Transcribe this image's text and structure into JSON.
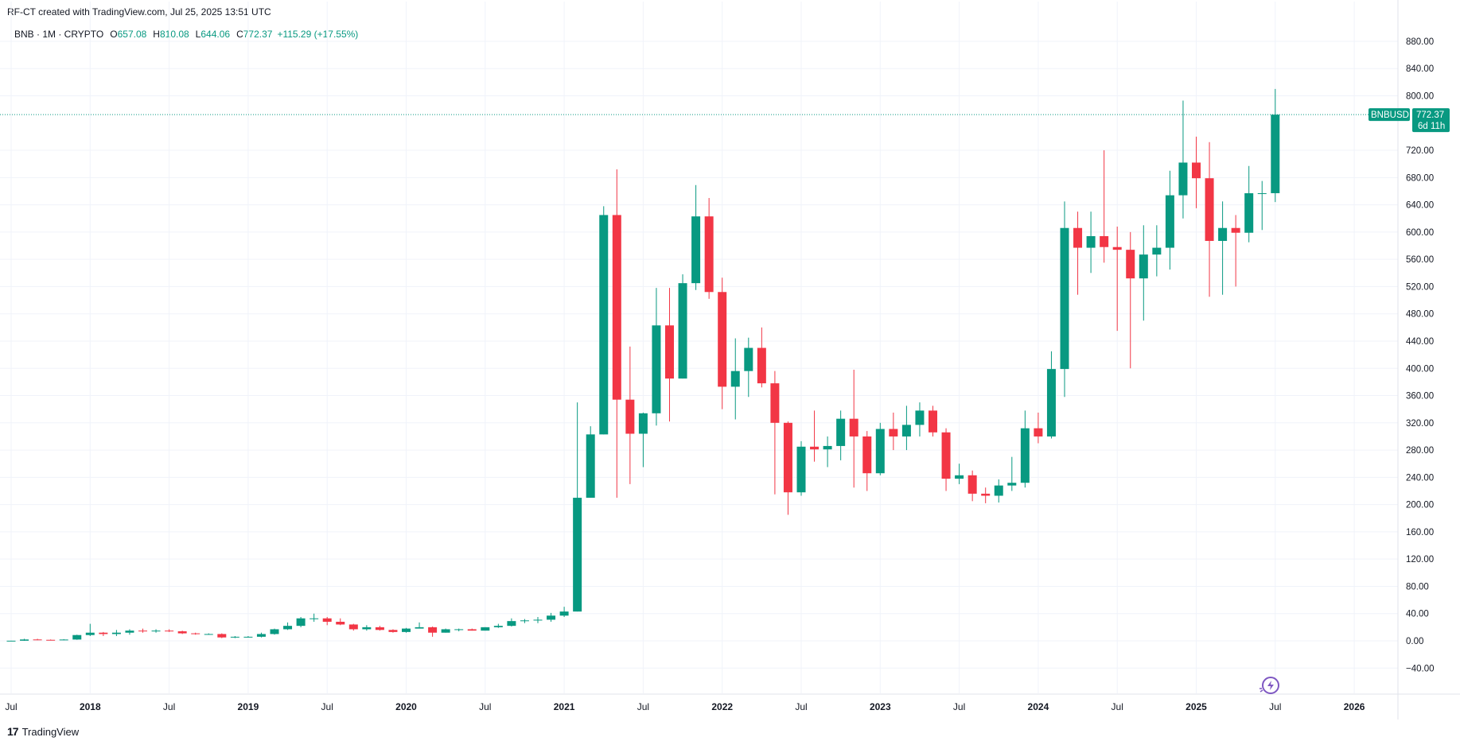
{
  "header": {
    "attribution": "RF-CT created with TradingView.com, Jul 25, 2025 13:51 UTC"
  },
  "legend": {
    "symbol": "BNB · 1M · CRYPTO",
    "open_key": "O",
    "open": "657.08",
    "high_key": "H",
    "high": "810.08",
    "low_key": "L",
    "low": "644.06",
    "close_key": "C",
    "close": "772.37",
    "change": "+115.29 (+17.55%)"
  },
  "price_tag": {
    "symbol": "BNBUSD",
    "price": "772.37",
    "countdown": "6d 11h"
  },
  "footer": {
    "brand": "TradingView",
    "logo_mark": "17"
  },
  "colors": {
    "up": "#089981",
    "down": "#f23645",
    "grid": "#f0f3fa",
    "text": "#131722"
  },
  "chart_data": {
    "type": "candlestick",
    "interval": "1M",
    "ylim": [
      -60,
      900
    ],
    "yticks": [
      -40,
      0,
      40,
      80,
      120,
      160,
      200,
      240,
      280,
      320,
      360,
      400,
      440,
      480,
      520,
      560,
      600,
      640,
      680,
      720,
      800,
      840,
      880
    ],
    "ytick_labels": [
      "−40.00",
      "0.00",
      "40.00",
      "80.00",
      "120.00",
      "160.00",
      "200.00",
      "240.00",
      "280.00",
      "320.00",
      "360.00",
      "400.00",
      "440.00",
      "480.00",
      "520.00",
      "560.00",
      "600.00",
      "640.00",
      "680.00",
      "720.00",
      "800.00",
      "840.00",
      "880.00"
    ],
    "xticks": [
      {
        "label": "Jul",
        "date": "2017-07"
      },
      {
        "label": "2018",
        "date": "2018-01"
      },
      {
        "label": "Jul",
        "date": "2018-07"
      },
      {
        "label": "2019",
        "date": "2019-01"
      },
      {
        "label": "Jul",
        "date": "2019-07"
      },
      {
        "label": "2020",
        "date": "2020-01"
      },
      {
        "label": "Jul",
        "date": "2020-07"
      },
      {
        "label": "2021",
        "date": "2021-01"
      },
      {
        "label": "Jul",
        "date": "2021-07"
      },
      {
        "label": "2022",
        "date": "2022-01"
      },
      {
        "label": "Jul",
        "date": "2022-07"
      },
      {
        "label": "2023",
        "date": "2023-01"
      },
      {
        "label": "Jul",
        "date": "2023-07"
      },
      {
        "label": "2024",
        "date": "2024-01"
      },
      {
        "label": "Jul",
        "date": "2024-07"
      },
      {
        "label": "2025",
        "date": "2025-01"
      },
      {
        "label": "Jul",
        "date": "2025-07"
      },
      {
        "label": "2026",
        "date": "2026-01"
      }
    ],
    "last_price": 772.37,
    "candles": [
      {
        "date": "2017-07",
        "o": 0.1,
        "h": 0.3,
        "l": 0.1,
        "c": 0.2
      },
      {
        "date": "2017-08",
        "o": 0.2,
        "h": 3,
        "l": 0.1,
        "c": 2
      },
      {
        "date": "2017-09",
        "o": 2,
        "h": 3,
        "l": 1,
        "c": 1.5
      },
      {
        "date": "2017-10",
        "o": 1.5,
        "h": 2,
        "l": 1,
        "c": 1.2
      },
      {
        "date": "2017-11",
        "o": 1.2,
        "h": 2.5,
        "l": 1,
        "c": 1.9
      },
      {
        "date": "2017-12",
        "o": 1.9,
        "h": 9,
        "l": 1.5,
        "c": 8.5
      },
      {
        "date": "2018-01",
        "o": 8.5,
        "h": 25,
        "l": 7,
        "c": 12
      },
      {
        "date": "2018-02",
        "o": 12,
        "h": 13,
        "l": 7,
        "c": 10
      },
      {
        "date": "2018-03",
        "o": 10,
        "h": 16,
        "l": 7,
        "c": 12
      },
      {
        "date": "2018-04",
        "o": 12,
        "h": 17,
        "l": 9,
        "c": 15
      },
      {
        "date": "2018-05",
        "o": 15,
        "h": 18,
        "l": 12,
        "c": 14
      },
      {
        "date": "2018-06",
        "o": 14,
        "h": 17,
        "l": 12,
        "c": 15
      },
      {
        "date": "2018-07",
        "o": 15,
        "h": 17,
        "l": 13,
        "c": 14
      },
      {
        "date": "2018-08",
        "o": 14,
        "h": 15,
        "l": 10,
        "c": 11
      },
      {
        "date": "2018-09",
        "o": 11,
        "h": 12,
        "l": 9,
        "c": 10
      },
      {
        "date": "2018-10",
        "o": 10,
        "h": 11,
        "l": 9,
        "c": 10
      },
      {
        "date": "2018-11",
        "o": 10,
        "h": 11,
        "l": 4,
        "c": 5
      },
      {
        "date": "2018-12",
        "o": 5,
        "h": 7,
        "l": 4,
        "c": 6
      },
      {
        "date": "2019-01",
        "o": 6,
        "h": 7,
        "l": 5,
        "c": 6
      },
      {
        "date": "2019-02",
        "o": 6,
        "h": 12,
        "l": 5,
        "c": 10
      },
      {
        "date": "2019-03",
        "o": 10,
        "h": 18,
        "l": 9,
        "c": 17
      },
      {
        "date": "2019-04",
        "o": 17,
        "h": 27,
        "l": 16,
        "c": 22
      },
      {
        "date": "2019-05",
        "o": 22,
        "h": 35,
        "l": 20,
        "c": 33
      },
      {
        "date": "2019-06",
        "o": 33,
        "h": 40,
        "l": 28,
        "c": 33
      },
      {
        "date": "2019-07",
        "o": 33,
        "h": 35,
        "l": 23,
        "c": 28
      },
      {
        "date": "2019-08",
        "o": 28,
        "h": 33,
        "l": 23,
        "c": 24
      },
      {
        "date": "2019-09",
        "o": 24,
        "h": 25,
        "l": 15,
        "c": 17
      },
      {
        "date": "2019-10",
        "o": 17,
        "h": 23,
        "l": 15,
        "c": 20
      },
      {
        "date": "2019-11",
        "o": 20,
        "h": 22,
        "l": 15,
        "c": 16
      },
      {
        "date": "2019-12",
        "o": 16,
        "h": 17,
        "l": 12,
        "c": 13
      },
      {
        "date": "2020-01",
        "o": 13,
        "h": 19,
        "l": 12,
        "c": 18
      },
      {
        "date": "2020-02",
        "o": 18,
        "h": 27,
        "l": 18,
        "c": 20
      },
      {
        "date": "2020-03",
        "o": 20,
        "h": 21,
        "l": 6,
        "c": 12
      },
      {
        "date": "2020-04",
        "o": 12,
        "h": 18,
        "l": 12,
        "c": 17
      },
      {
        "date": "2020-05",
        "o": 17,
        "h": 18,
        "l": 14,
        "c": 17
      },
      {
        "date": "2020-06",
        "o": 17,
        "h": 18,
        "l": 15,
        "c": 15
      },
      {
        "date": "2020-07",
        "o": 15,
        "h": 20,
        "l": 15,
        "c": 20
      },
      {
        "date": "2020-08",
        "o": 20,
        "h": 25,
        "l": 19,
        "c": 22
      },
      {
        "date": "2020-09",
        "o": 22,
        "h": 33,
        "l": 21,
        "c": 29
      },
      {
        "date": "2020-10",
        "o": 29,
        "h": 32,
        "l": 26,
        "c": 30
      },
      {
        "date": "2020-11",
        "o": 30,
        "h": 35,
        "l": 26,
        "c": 31
      },
      {
        "date": "2020-12",
        "o": 31,
        "h": 41,
        "l": 28,
        "c": 37
      },
      {
        "date": "2021-01",
        "o": 37,
        "h": 50,
        "l": 35,
        "c": 43
      },
      {
        "date": "2021-02",
        "o": 43,
        "h": 350,
        "l": 43,
        "c": 210
      },
      {
        "date": "2021-03",
        "o": 210,
        "h": 315,
        "l": 210,
        "c": 303
      },
      {
        "date": "2021-04",
        "o": 303,
        "h": 638,
        "l": 303,
        "c": 625
      },
      {
        "date": "2021-05",
        "o": 625,
        "h": 692,
        "l": 210,
        "c": 354
      },
      {
        "date": "2021-06",
        "o": 354,
        "h": 432,
        "l": 230,
        "c": 304
      },
      {
        "date": "2021-07",
        "o": 304,
        "h": 335,
        "l": 255,
        "c": 334
      },
      {
        "date": "2021-08",
        "o": 334,
        "h": 518,
        "l": 316,
        "c": 463
      },
      {
        "date": "2021-09",
        "o": 463,
        "h": 518,
        "l": 322,
        "c": 385
      },
      {
        "date": "2021-10",
        "o": 385,
        "h": 538,
        "l": 385,
        "c": 525
      },
      {
        "date": "2021-11",
        "o": 525,
        "h": 669,
        "l": 515,
        "c": 623
      },
      {
        "date": "2021-12",
        "o": 623,
        "h": 650,
        "l": 502,
        "c": 512
      },
      {
        "date": "2022-01",
        "o": 512,
        "h": 533,
        "l": 340,
        "c": 373
      },
      {
        "date": "2022-02",
        "o": 373,
        "h": 444,
        "l": 325,
        "c": 396
      },
      {
        "date": "2022-03",
        "o": 396,
        "h": 445,
        "l": 358,
        "c": 430
      },
      {
        "date": "2022-04",
        "o": 430,
        "h": 460,
        "l": 372,
        "c": 378
      },
      {
        "date": "2022-05",
        "o": 378,
        "h": 396,
        "l": 215,
        "c": 320
      },
      {
        "date": "2022-06",
        "o": 320,
        "h": 322,
        "l": 185,
        "c": 218
      },
      {
        "date": "2022-07",
        "o": 218,
        "h": 293,
        "l": 213,
        "c": 285
      },
      {
        "date": "2022-08",
        "o": 285,
        "h": 338,
        "l": 263,
        "c": 281
      },
      {
        "date": "2022-09",
        "o": 281,
        "h": 300,
        "l": 255,
        "c": 286
      },
      {
        "date": "2022-10",
        "o": 286,
        "h": 338,
        "l": 265,
        "c": 326
      },
      {
        "date": "2022-11",
        "o": 326,
        "h": 398,
        "l": 225,
        "c": 300
      },
      {
        "date": "2022-12",
        "o": 300,
        "h": 308,
        "l": 220,
        "c": 246
      },
      {
        "date": "2023-01",
        "o": 246,
        "h": 320,
        "l": 243,
        "c": 311
      },
      {
        "date": "2023-02",
        "o": 311,
        "h": 335,
        "l": 280,
        "c": 300
      },
      {
        "date": "2023-03",
        "o": 300,
        "h": 345,
        "l": 280,
        "c": 317
      },
      {
        "date": "2023-04",
        "o": 317,
        "h": 350,
        "l": 300,
        "c": 338
      },
      {
        "date": "2023-05",
        "o": 338,
        "h": 345,
        "l": 300,
        "c": 306
      },
      {
        "date": "2023-06",
        "o": 306,
        "h": 312,
        "l": 220,
        "c": 238
      },
      {
        "date": "2023-07",
        "o": 238,
        "h": 260,
        "l": 230,
        "c": 243
      },
      {
        "date": "2023-08",
        "o": 243,
        "h": 250,
        "l": 205,
        "c": 216
      },
      {
        "date": "2023-09",
        "o": 216,
        "h": 225,
        "l": 202,
        "c": 213
      },
      {
        "date": "2023-10",
        "o": 213,
        "h": 237,
        "l": 203,
        "c": 228
      },
      {
        "date": "2023-11",
        "o": 228,
        "h": 270,
        "l": 220,
        "c": 232
      },
      {
        "date": "2023-12",
        "o": 232,
        "h": 338,
        "l": 225,
        "c": 312
      },
      {
        "date": "2024-01",
        "o": 312,
        "h": 335,
        "l": 290,
        "c": 300
      },
      {
        "date": "2024-02",
        "o": 300,
        "h": 425,
        "l": 297,
        "c": 399
      },
      {
        "date": "2024-03",
        "o": 399,
        "h": 645,
        "l": 358,
        "c": 606
      },
      {
        "date": "2024-04",
        "o": 606,
        "h": 630,
        "l": 508,
        "c": 577
      },
      {
        "date": "2024-05",
        "o": 577,
        "h": 630,
        "l": 540,
        "c": 594
      },
      {
        "date": "2024-06",
        "o": 594,
        "h": 720,
        "l": 555,
        "c": 578
      },
      {
        "date": "2024-07",
        "o": 578,
        "h": 608,
        "l": 455,
        "c": 574
      },
      {
        "date": "2024-08",
        "o": 574,
        "h": 600,
        "l": 400,
        "c": 532
      },
      {
        "date": "2024-09",
        "o": 532,
        "h": 610,
        "l": 470,
        "c": 567
      },
      {
        "date": "2024-10",
        "o": 567,
        "h": 610,
        "l": 535,
        "c": 577
      },
      {
        "date": "2024-11",
        "o": 577,
        "h": 690,
        "l": 545,
        "c": 654
      },
      {
        "date": "2024-12",
        "o": 654,
        "h": 793,
        "l": 620,
        "c": 702
      },
      {
        "date": "2025-01",
        "o": 702,
        "h": 740,
        "l": 635,
        "c": 679
      },
      {
        "date": "2025-02",
        "o": 679,
        "h": 732,
        "l": 505,
        "c": 587
      },
      {
        "date": "2025-03",
        "o": 587,
        "h": 645,
        "l": 508,
        "c": 606
      },
      {
        "date": "2025-04",
        "o": 606,
        "h": 625,
        "l": 520,
        "c": 599
      },
      {
        "date": "2025-05",
        "o": 599,
        "h": 697,
        "l": 585,
        "c": 657
      },
      {
        "date": "2025-06",
        "o": 657,
        "h": 675,
        "l": 603,
        "c": 657
      },
      {
        "date": "2025-07",
        "o": 657.08,
        "h": 810.08,
        "l": 644.06,
        "c": 772.37
      }
    ]
  }
}
